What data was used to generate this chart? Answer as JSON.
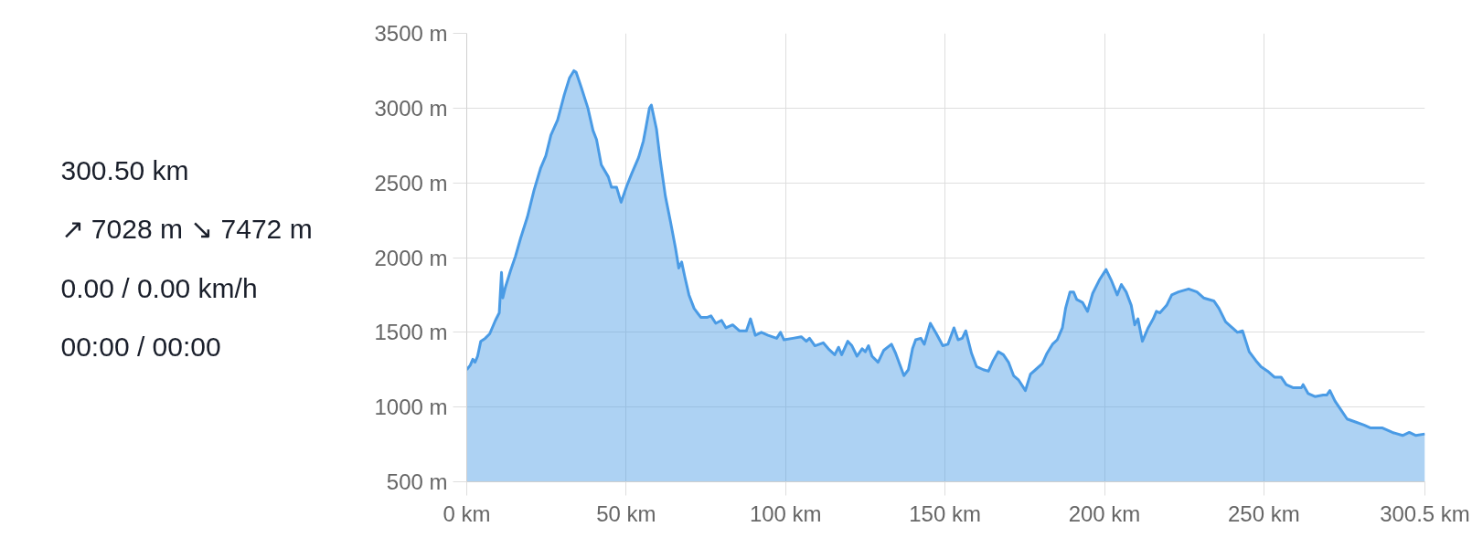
{
  "chart_data": [
    {
      "type": "other",
      "annotations": [
        "300.50 km",
        "↗ 7028 m ↘ 7472 m",
        "0.00 / 0.00 km/h",
        "00:00 / 00:00"
      ]
    },
    {
      "type": "area",
      "color": "#4a9be5",
      "x": [
        0,
        1.1,
        1.9,
        2.6,
        3.4,
        4.4,
        5.8,
        7.2,
        9.0,
        10.2,
        10.9,
        11.3,
        12.1,
        13.7,
        15.3,
        16.9,
        19.0,
        21.1,
        23.2,
        24.8,
        26.4,
        28.5,
        30.6,
        32.2,
        33.6,
        34.3,
        35.9,
        38.0,
        39.6,
        40.7,
        42.2,
        44.4,
        45.4,
        47.0,
        48.4,
        50.2,
        51.7,
        53.9,
        55.4,
        56.2,
        57.3,
        57.9,
        58.4,
        59.5,
        60.7,
        62.3,
        63.9,
        65.5,
        66.5,
        67.4,
        68.4,
        69.7,
        71.3,
        73.4,
        75.5,
        76.6,
        78.1,
        79.9,
        81.3,
        83.4,
        85.5,
        87.7,
        89.0,
        90.5,
        92.4,
        94.5,
        97.2,
        98.4,
        99.5,
        102.3,
        104.9,
        106.5,
        107.5,
        109.2,
        111.8,
        113.4,
        115.4,
        116.6,
        117.6,
        119.5,
        120.8,
        122.4,
        124.0,
        125.0,
        126.0,
        127.1,
        129.0,
        130.8,
        133.2,
        134.5,
        137.1,
        138.5,
        139.8,
        140.8,
        142.4,
        143.5,
        145.4,
        147.3,
        149.3,
        150.9,
        152.8,
        154.1,
        155.4,
        156.5,
        158.3,
        159.9,
        162.0,
        163.6,
        165.1,
        166.7,
        168.3,
        169.9,
        171.5,
        173.1,
        175.2,
        176.8,
        178.4,
        180.5,
        182.0,
        183.7,
        185.2,
        186.8,
        187.8,
        189.2,
        190.3,
        191.3,
        193.1,
        194.7,
        196.3,
        198.4,
        200.5,
        202.1,
        204.0,
        205.3,
        206.8,
        208.4,
        209.5,
        210.5,
        211.9,
        213.7,
        215.3,
        216.3,
        217.4,
        219.5,
        221.1,
        223.2,
        226.4,
        229.0,
        231.1,
        234.3,
        235.9,
        238.0,
        240.1,
        241.7,
        243.3,
        245.4,
        247.5,
        249.1,
        251.2,
        253.3,
        255.4,
        257.0,
        259.1,
        261.8,
        262.3,
        263.9,
        266.0,
        268.6,
        269.7,
        270.7,
        272.3,
        273.9,
        276.1,
        278.7,
        281.4,
        283.5,
        287.2,
        290.3,
        293.5,
        295.6,
        297.7,
        300.5
      ],
      "values": [
        1250,
        1280,
        1320,
        1300,
        1340,
        1440,
        1460,
        1490,
        1580,
        1630,
        1900,
        1730,
        1800,
        1910,
        2010,
        2130,
        2270,
        2450,
        2600,
        2680,
        2820,
        2920,
        3090,
        3200,
        3250,
        3240,
        3140,
        3000,
        2850,
        2790,
        2620,
        2540,
        2470,
        2470,
        2370,
        2480,
        2560,
        2670,
        2780,
        2870,
        3000,
        3020,
        2970,
        2860,
        2650,
        2410,
        2240,
        2060,
        1930,
        1970,
        1870,
        1750,
        1660,
        1600,
        1600,
        1610,
        1560,
        1580,
        1530,
        1550,
        1510,
        1510,
        1590,
        1480,
        1500,
        1480,
        1460,
        1500,
        1450,
        1460,
        1470,
        1440,
        1460,
        1410,
        1430,
        1390,
        1350,
        1400,
        1350,
        1440,
        1410,
        1340,
        1390,
        1370,
        1410,
        1340,
        1300,
        1380,
        1420,
        1360,
        1210,
        1250,
        1390,
        1450,
        1460,
        1420,
        1560,
        1490,
        1410,
        1420,
        1530,
        1450,
        1460,
        1510,
        1360,
        1270,
        1250,
        1240,
        1310,
        1370,
        1350,
        1300,
        1210,
        1180,
        1110,
        1220,
        1250,
        1290,
        1360,
        1420,
        1450,
        1530,
        1660,
        1770,
        1770,
        1720,
        1700,
        1640,
        1760,
        1850,
        1920,
        1850,
        1750,
        1820,
        1770,
        1680,
        1550,
        1590,
        1440,
        1530,
        1590,
        1640,
        1630,
        1680,
        1750,
        1770,
        1790,
        1770,
        1730,
        1710,
        1660,
        1570,
        1530,
        1500,
        1510,
        1370,
        1310,
        1270,
        1240,
        1200,
        1200,
        1150,
        1130,
        1130,
        1150,
        1090,
        1070,
        1080,
        1080,
        1110,
        1040,
        990,
        920,
        900,
        880,
        860,
        860,
        830,
        810,
        830,
        810,
        820
      ],
      "xlim": [
        0,
        300.5
      ],
      "xticks": [
        {
          "value": 0,
          "label": "0 km"
        },
        {
          "value": 50,
          "label": "50 km"
        },
        {
          "value": 100,
          "label": "100 km"
        },
        {
          "value": 150,
          "label": "150 km"
        },
        {
          "value": 200,
          "label": "200 km"
        },
        {
          "value": 250,
          "label": "250 km"
        },
        {
          "value": 300.5,
          "label": "300.5 km"
        }
      ],
      "ylim": [
        500,
        3500
      ],
      "yticks": [
        {
          "value": 500,
          "label": "500 m"
        },
        {
          "value": 1000,
          "label": "1000 m"
        },
        {
          "value": 1500,
          "label": "1500 m"
        },
        {
          "value": 2000,
          "label": "2000 m"
        },
        {
          "value": 2500,
          "label": "2500 m"
        },
        {
          "value": 3000,
          "label": "3000 m"
        },
        {
          "value": 3500,
          "label": "3500 m"
        }
      ],
      "grid": true
    }
  ]
}
